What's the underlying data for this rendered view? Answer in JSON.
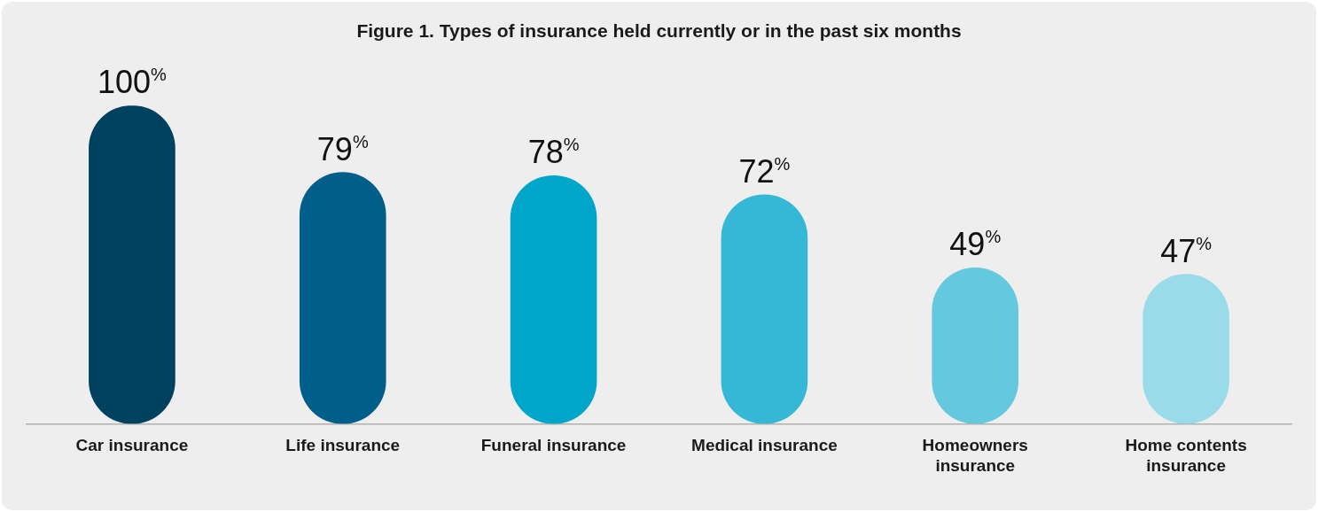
{
  "chart_data": {
    "type": "bar",
    "title": "Figure 1. Types of insurance held currently or in the past six months",
    "categories": [
      "Car insurance",
      "Life insurance",
      "Funeral insurance",
      "Medical insurance",
      "Homeowners insurance",
      "Home contents insurance"
    ],
    "values": [
      100,
      79,
      78,
      72,
      49,
      47
    ],
    "colors": [
      "#00415f",
      "#005f8a",
      "#00a6c9",
      "#35b8d6",
      "#64c8de",
      "#9adbea"
    ],
    "value_labels": [
      "100%",
      "79%",
      "78%",
      "72%",
      "49%",
      "47%"
    ],
    "tick_labels": "x",
    "grid": false,
    "legend": false
  }
}
